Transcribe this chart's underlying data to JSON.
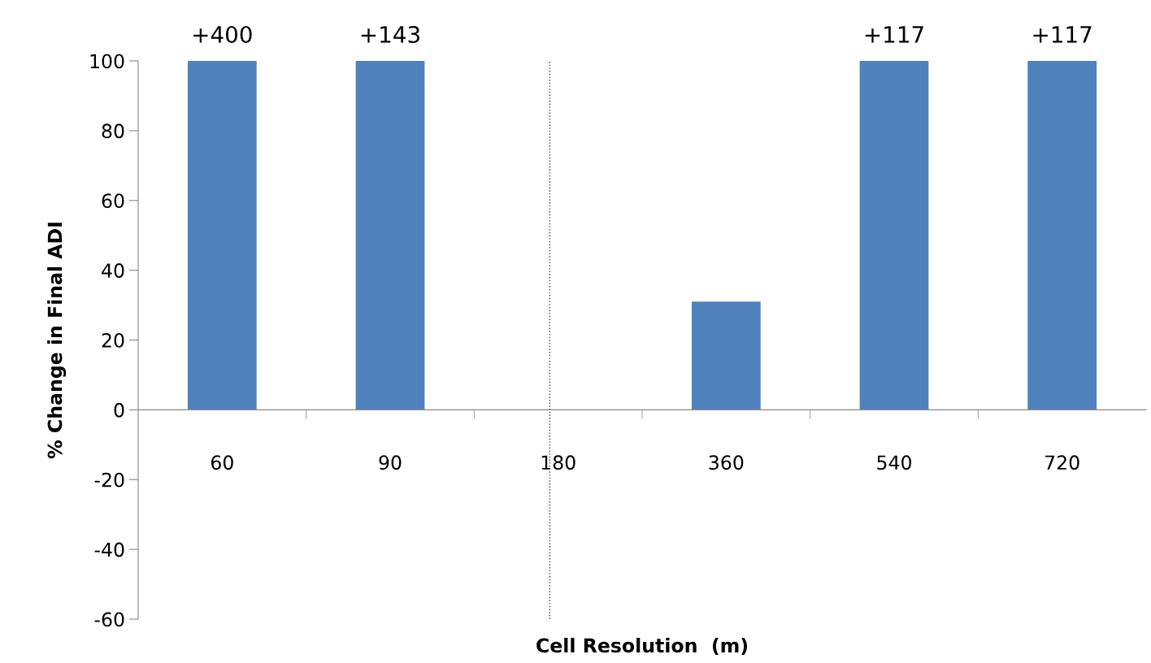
{
  "chart_data": {
    "type": "bar",
    "xlabel": "Cell Resolution  (m)",
    "ylabel": "% Change in Final ADI",
    "categories": [
      "60",
      "90",
      "180",
      "360",
      "540",
      "720"
    ],
    "values": [
      100,
      100,
      0,
      31,
      100,
      100
    ],
    "color": "#4f81bd",
    "ylim": [
      -60,
      100
    ],
    "yticks": [
      -60,
      -40,
      -20,
      0,
      20,
      40,
      60,
      80,
      100
    ],
    "grid": false,
    "legend": false,
    "ref_lines": [
      {
        "axis": "x",
        "value": "180",
        "color": "#404040",
        "line_style": "dotted"
      }
    ],
    "annotations": [
      {
        "text": "+400",
        "x": "60",
        "y": 100
      },
      {
        "text": "+143",
        "x": "90",
        "y": 100
      },
      {
        "text": "+117",
        "x": "540",
        "y": 100
      },
      {
        "text": "+117",
        "x": "720",
        "y": 100
      }
    ]
  }
}
